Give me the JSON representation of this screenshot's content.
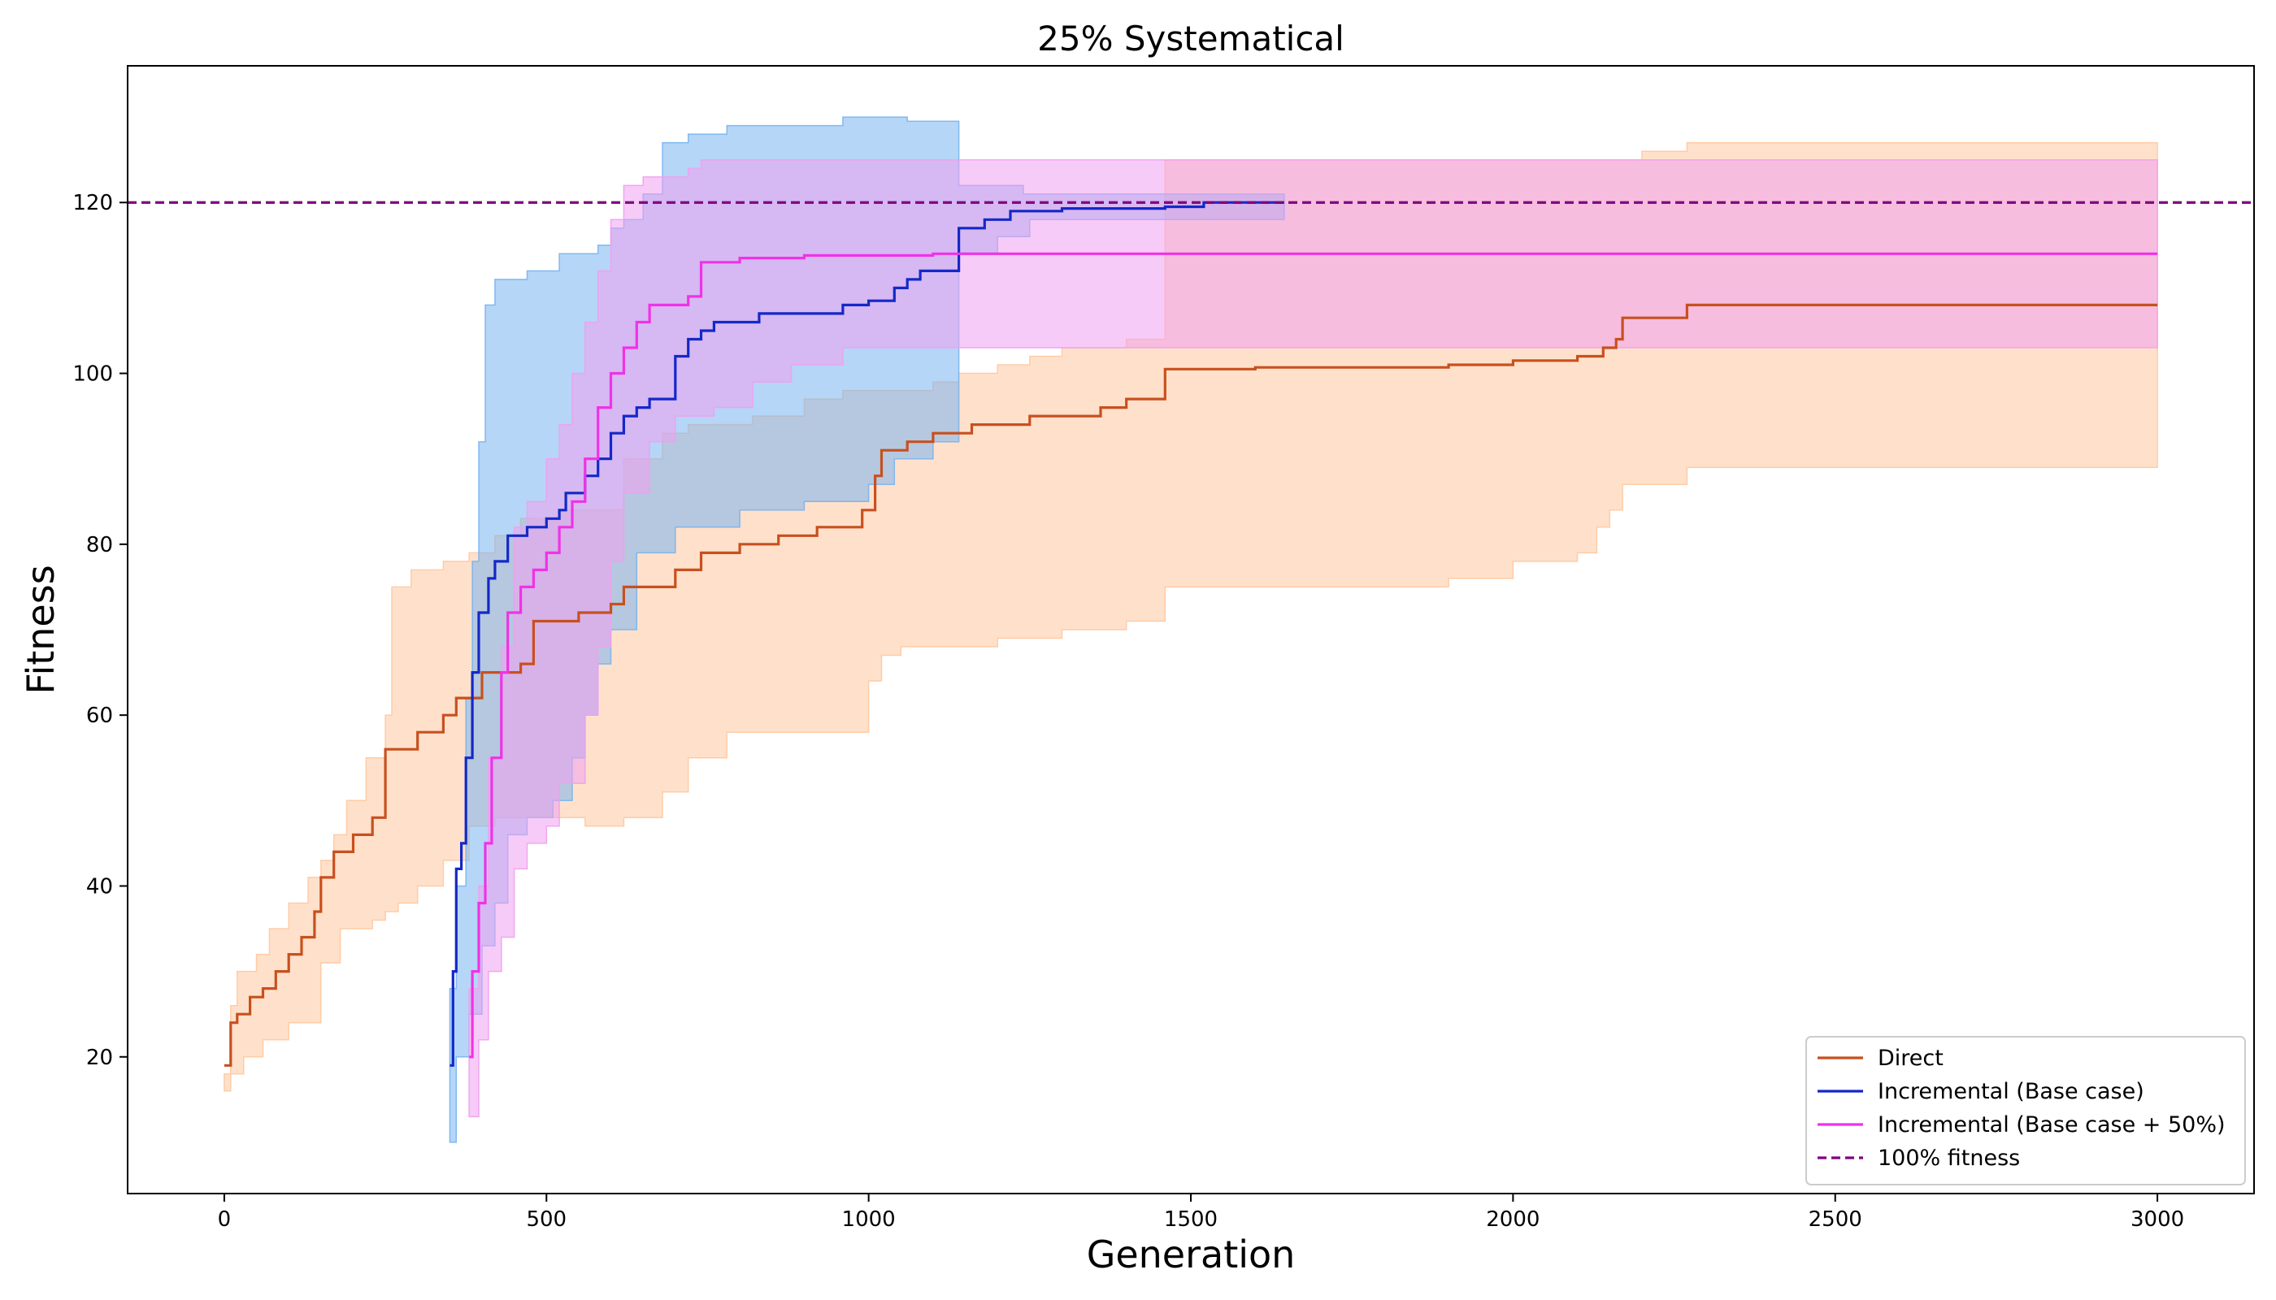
{
  "chart_data": {
    "type": "line",
    "title": "25% Systematical",
    "xlabel": "Generation",
    "ylabel": "Fitness",
    "xlim": [
      -150,
      3150
    ],
    "ylim": [
      4,
      136
    ],
    "xticks": [
      0,
      500,
      1000,
      1500,
      2000,
      2500,
      3000
    ],
    "yticks": [
      20,
      40,
      60,
      80,
      100,
      120
    ],
    "grid": false,
    "legend_position": "lower right",
    "series": [
      {
        "name": "Direct",
        "color": "#c8501e",
        "band_color": "#ffc8a0",
        "mean": [
          [
            0,
            19
          ],
          [
            10,
            24
          ],
          [
            20,
            25
          ],
          [
            40,
            27
          ],
          [
            60,
            28
          ],
          [
            80,
            30
          ],
          [
            100,
            32
          ],
          [
            120,
            34
          ],
          [
            140,
            37
          ],
          [
            150,
            41
          ],
          [
            170,
            44
          ],
          [
            200,
            46
          ],
          [
            230,
            48
          ],
          [
            250,
            56
          ],
          [
            300,
            58
          ],
          [
            340,
            60
          ],
          [
            360,
            62
          ],
          [
            400,
            65
          ],
          [
            460,
            66
          ],
          [
            480,
            71
          ],
          [
            550,
            72
          ],
          [
            600,
            73
          ],
          [
            620,
            75
          ],
          [
            700,
            77
          ],
          [
            740,
            79
          ],
          [
            800,
            80
          ],
          [
            860,
            81
          ],
          [
            920,
            82
          ],
          [
            990,
            84
          ],
          [
            1010,
            88
          ],
          [
            1020,
            91
          ],
          [
            1060,
            92
          ],
          [
            1100,
            93
          ],
          [
            1150,
            93
          ],
          [
            1160,
            94
          ],
          [
            1250,
            95
          ],
          [
            1350,
            95
          ],
          [
            1360,
            96
          ],
          [
            1400,
            97
          ],
          [
            1450,
            97
          ],
          [
            1460,
            100.5
          ],
          [
            1600,
            100.7
          ],
          [
            1900,
            101
          ],
          [
            2000,
            101.5
          ],
          [
            2100,
            102
          ],
          [
            2140,
            103
          ],
          [
            2160,
            104
          ],
          [
            2170,
            106.5
          ],
          [
            2270,
            108
          ],
          [
            3000,
            108
          ]
        ],
        "upper": [
          [
            0,
            18
          ],
          [
            10,
            26
          ],
          [
            20,
            30
          ],
          [
            50,
            32
          ],
          [
            70,
            35
          ],
          [
            100,
            38
          ],
          [
            130,
            41
          ],
          [
            150,
            43
          ],
          [
            170,
            46
          ],
          [
            190,
            50
          ],
          [
            220,
            55
          ],
          [
            250,
            60
          ],
          [
            260,
            75
          ],
          [
            290,
            77
          ],
          [
            340,
            78
          ],
          [
            380,
            79
          ],
          [
            420,
            81
          ],
          [
            460,
            83
          ],
          [
            520,
            84
          ],
          [
            580,
            84
          ],
          [
            620,
            90
          ],
          [
            680,
            93
          ],
          [
            720,
            94
          ],
          [
            780,
            94
          ],
          [
            820,
            95
          ],
          [
            900,
            97
          ],
          [
            960,
            98
          ],
          [
            1000,
            98
          ],
          [
            1050,
            98
          ],
          [
            1100,
            99
          ],
          [
            1140,
            100
          ],
          [
            1200,
            101
          ],
          [
            1250,
            102
          ],
          [
            1300,
            103
          ],
          [
            1400,
            104
          ],
          [
            1450,
            104
          ],
          [
            1460,
            125
          ],
          [
            1700,
            125
          ],
          [
            2000,
            125
          ],
          [
            2200,
            126
          ],
          [
            2270,
            127
          ],
          [
            3000,
            127
          ]
        ],
        "lower": [
          [
            0,
            16
          ],
          [
            10,
            18
          ],
          [
            30,
            20
          ],
          [
            60,
            22
          ],
          [
            100,
            24
          ],
          [
            150,
            31
          ],
          [
            180,
            35
          ],
          [
            230,
            36
          ],
          [
            250,
            37
          ],
          [
            270,
            38
          ],
          [
            300,
            40
          ],
          [
            340,
            43
          ],
          [
            380,
            47
          ],
          [
            420,
            48
          ],
          [
            480,
            48
          ],
          [
            520,
            48
          ],
          [
            560,
            47
          ],
          [
            620,
            48
          ],
          [
            680,
            51
          ],
          [
            720,
            55
          ],
          [
            780,
            58
          ],
          [
            900,
            58
          ],
          [
            960,
            58
          ],
          [
            1000,
            64
          ],
          [
            1020,
            67
          ],
          [
            1050,
            68
          ],
          [
            1100,
            68
          ],
          [
            1150,
            68
          ],
          [
            1200,
            69
          ],
          [
            1300,
            70
          ],
          [
            1400,
            71
          ],
          [
            1450,
            71
          ],
          [
            1460,
            75
          ],
          [
            1500,
            75
          ],
          [
            1600,
            75
          ],
          [
            1900,
            76
          ],
          [
            2000,
            78
          ],
          [
            2100,
            79
          ],
          [
            2130,
            82
          ],
          [
            2150,
            84
          ],
          [
            2170,
            87
          ],
          [
            2270,
            89
          ],
          [
            3000,
            89
          ]
        ]
      },
      {
        "name": "Incremental (Base case)",
        "color": "#1428c8",
        "band_color": "#78b4f0",
        "mean": [
          [
            350,
            19
          ],
          [
            355,
            30
          ],
          [
            360,
            42
          ],
          [
            368,
            45
          ],
          [
            375,
            55
          ],
          [
            385,
            65
          ],
          [
            395,
            72
          ],
          [
            410,
            76
          ],
          [
            420,
            78
          ],
          [
            440,
            81
          ],
          [
            470,
            82
          ],
          [
            490,
            82
          ],
          [
            500,
            83
          ],
          [
            520,
            84
          ],
          [
            530,
            86
          ],
          [
            560,
            88
          ],
          [
            580,
            90
          ],
          [
            600,
            93
          ],
          [
            620,
            95
          ],
          [
            640,
            96
          ],
          [
            660,
            97
          ],
          [
            680,
            97
          ],
          [
            700,
            102
          ],
          [
            720,
            104
          ],
          [
            740,
            105
          ],
          [
            760,
            106
          ],
          [
            800,
            106
          ],
          [
            830,
            107
          ],
          [
            870,
            107
          ],
          [
            960,
            108
          ],
          [
            1000,
            108.5
          ],
          [
            1040,
            110
          ],
          [
            1060,
            111
          ],
          [
            1080,
            112
          ],
          [
            1100,
            112
          ],
          [
            1140,
            117
          ],
          [
            1180,
            118
          ],
          [
            1220,
            119
          ],
          [
            1300,
            119.3
          ],
          [
            1460,
            119.5
          ],
          [
            1520,
            120
          ],
          [
            1645,
            120
          ]
        ],
        "upper": [
          [
            350,
            28
          ],
          [
            360,
            40
          ],
          [
            375,
            62
          ],
          [
            385,
            78
          ],
          [
            395,
            92
          ],
          [
            405,
            108
          ],
          [
            420,
            111
          ],
          [
            470,
            112
          ],
          [
            520,
            114
          ],
          [
            560,
            114
          ],
          [
            580,
            115
          ],
          [
            600,
            117
          ],
          [
            620,
            118
          ],
          [
            650,
            121
          ],
          [
            680,
            127
          ],
          [
            720,
            128
          ],
          [
            780,
            129
          ],
          [
            900,
            129
          ],
          [
            960,
            130
          ],
          [
            1040,
            130
          ],
          [
            1060,
            129.5
          ],
          [
            1140,
            129.5
          ],
          [
            1140,
            122
          ],
          [
            1220,
            122
          ],
          [
            1240,
            121
          ],
          [
            1400,
            121
          ],
          [
            1645,
            121
          ]
        ],
        "lower": [
          [
            350,
            10
          ],
          [
            360,
            20
          ],
          [
            380,
            25
          ],
          [
            400,
            33
          ],
          [
            420,
            38
          ],
          [
            440,
            46
          ],
          [
            470,
            48
          ],
          [
            510,
            50
          ],
          [
            540,
            55
          ],
          [
            560,
            60
          ],
          [
            580,
            66
          ],
          [
            600,
            70
          ],
          [
            640,
            79
          ],
          [
            700,
            82
          ],
          [
            800,
            84
          ],
          [
            900,
            85
          ],
          [
            1000,
            87
          ],
          [
            1040,
            90
          ],
          [
            1100,
            92
          ],
          [
            1140,
            94
          ],
          [
            1140,
            114
          ],
          [
            1200,
            116
          ],
          [
            1250,
            118
          ],
          [
            1400,
            118
          ],
          [
            1645,
            118
          ]
        ]
      },
      {
        "name": "Incremental (Base case + 50%)",
        "color": "#f032e6",
        "band_color": "#f0a0f0",
        "mean": [
          [
            380,
            20
          ],
          [
            385,
            30
          ],
          [
            395,
            38
          ],
          [
            405,
            45
          ],
          [
            415,
            55
          ],
          [
            430,
            65
          ],
          [
            440,
            72
          ],
          [
            460,
            75
          ],
          [
            480,
            77
          ],
          [
            500,
            79
          ],
          [
            520,
            82
          ],
          [
            540,
            85
          ],
          [
            560,
            90
          ],
          [
            580,
            96
          ],
          [
            600,
            100
          ],
          [
            620,
            103
          ],
          [
            640,
            106
          ],
          [
            660,
            108
          ],
          [
            720,
            109
          ],
          [
            740,
            113
          ],
          [
            800,
            113.5
          ],
          [
            900,
            113.8
          ],
          [
            1100,
            114
          ],
          [
            1400,
            114
          ],
          [
            3000,
            114
          ]
        ],
        "upper": [
          [
            380,
            28
          ],
          [
            395,
            40
          ],
          [
            410,
            55
          ],
          [
            430,
            68
          ],
          [
            450,
            82
          ],
          [
            470,
            85
          ],
          [
            500,
            90
          ],
          [
            520,
            94
          ],
          [
            540,
            100
          ],
          [
            560,
            106
          ],
          [
            580,
            112
          ],
          [
            600,
            118
          ],
          [
            620,
            122
          ],
          [
            650,
            123
          ],
          [
            720,
            124
          ],
          [
            740,
            125
          ],
          [
            1100,
            125
          ],
          [
            1500,
            125
          ],
          [
            3000,
            125
          ]
        ],
        "lower": [
          [
            380,
            13
          ],
          [
            395,
            22
          ],
          [
            410,
            30
          ],
          [
            430,
            34
          ],
          [
            450,
            42
          ],
          [
            470,
            45
          ],
          [
            500,
            47
          ],
          [
            520,
            52
          ],
          [
            560,
            60
          ],
          [
            580,
            68
          ],
          [
            600,
            78
          ],
          [
            620,
            86
          ],
          [
            660,
            92
          ],
          [
            700,
            95
          ],
          [
            760,
            96
          ],
          [
            820,
            99
          ],
          [
            880,
            101
          ],
          [
            960,
            103
          ],
          [
            1100,
            103
          ],
          [
            1500,
            103
          ],
          [
            3000,
            103
          ]
        ]
      },
      {
        "name": "100% fitness",
        "color": "#800080",
        "style": "dashed",
        "y": 120
      }
    ]
  }
}
